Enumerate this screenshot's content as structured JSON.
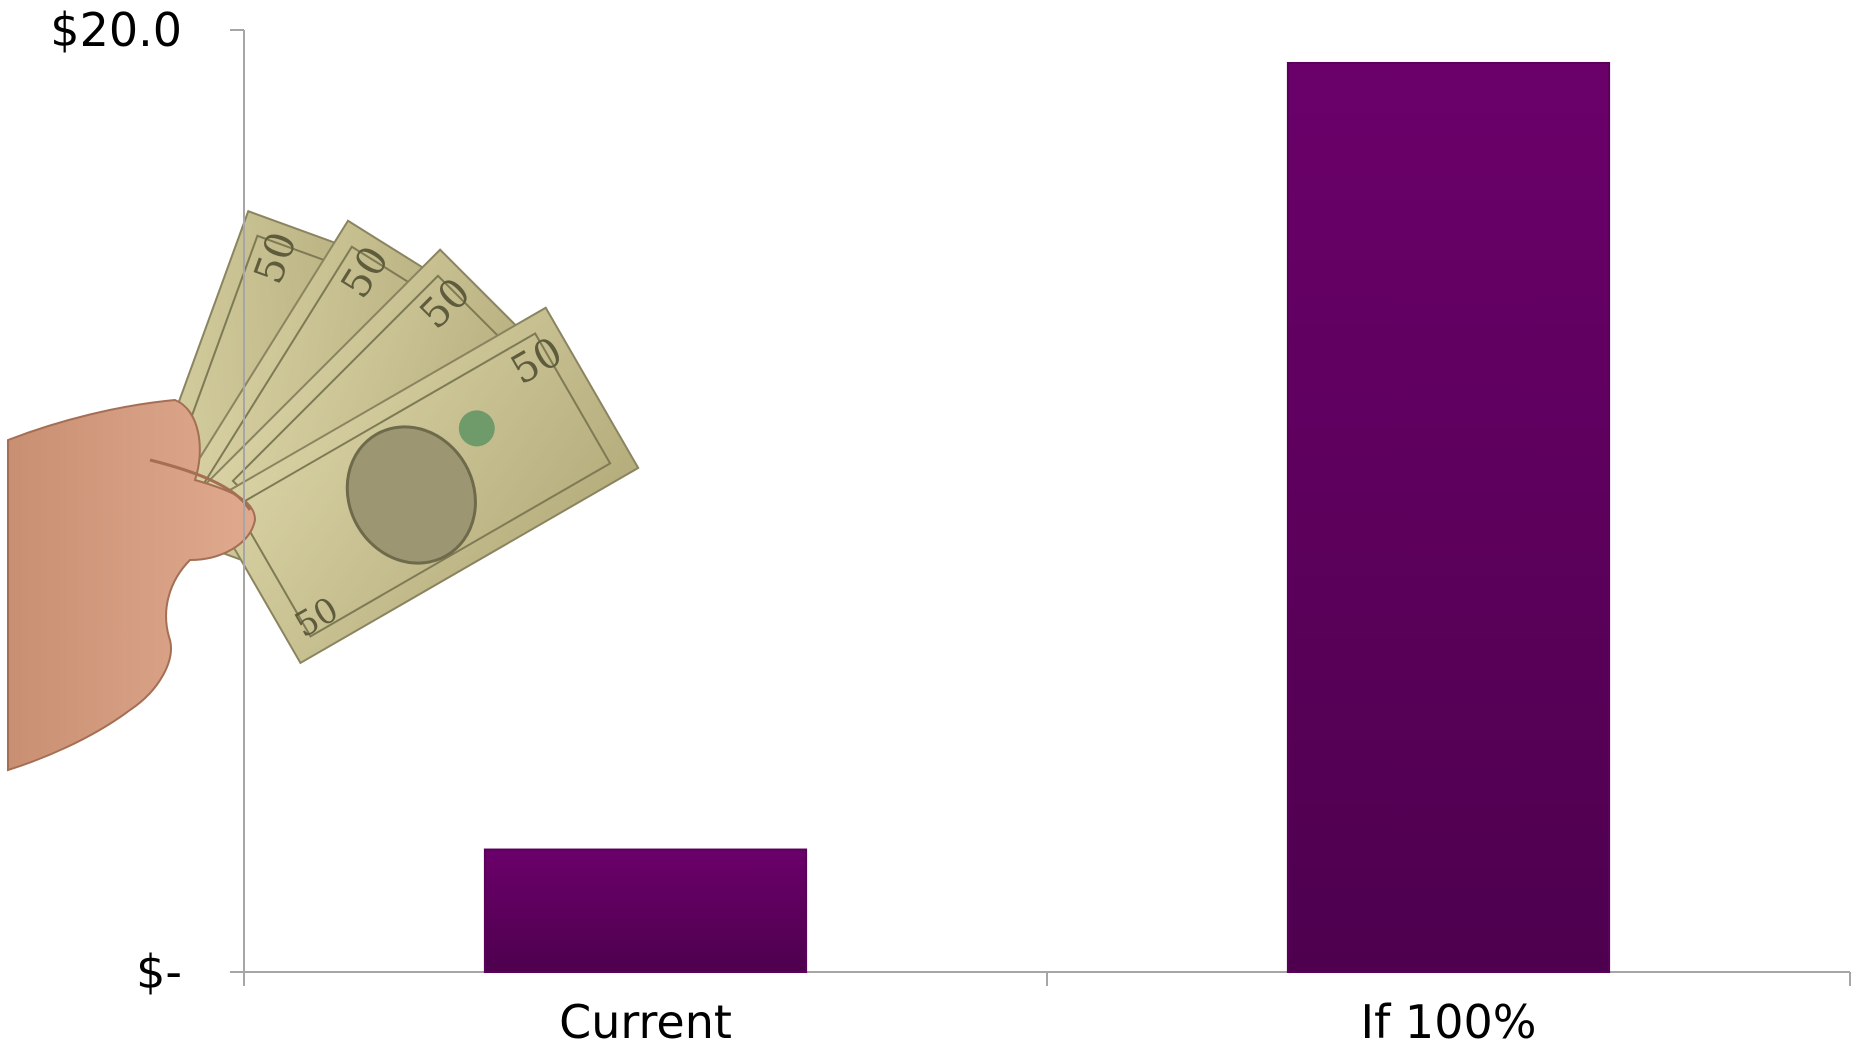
{
  "chart_data": {
    "type": "bar",
    "categories": [
      "Current",
      "If 100%"
    ],
    "values": [
      2.6,
      19.3
    ],
    "ylim": [
      0,
      20
    ],
    "ytick_labels": [
      {
        "value": 0,
        "label": "$-"
      },
      {
        "value": 20,
        "label": "$20.0"
      }
    ],
    "grid": false,
    "legend": "none",
    "bar_color_top": "#6b006b",
    "bar_color_bottom": "#4e004e",
    "axis_color": "#a6a6a6"
  },
  "decoration": {
    "image": "hand-holding-fifty-dollar-bills"
  }
}
